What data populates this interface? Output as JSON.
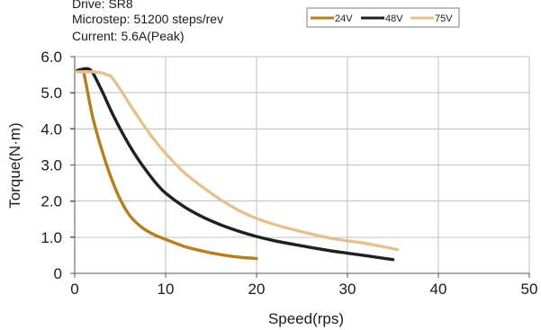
{
  "notes": {
    "drive": "Drive: SR8",
    "microstep": "Microstep: 51200 steps/rev",
    "current": "Current: 5.6A(Peak)"
  },
  "chart_data": {
    "type": "line",
    "title": "",
    "xlabel": "Speed(rps)",
    "ylabel": "Torque(N·m)",
    "xlim": [
      0,
      50
    ],
    "ylim": [
      0,
      6
    ],
    "xticks": [
      {
        "value": 0,
        "label": "0"
      },
      {
        "value": 10,
        "label": "10"
      },
      {
        "value": 20,
        "label": "20"
      },
      {
        "value": 30,
        "label": "30"
      },
      {
        "value": 40,
        "label": "40"
      },
      {
        "value": 50,
        "label": "50"
      }
    ],
    "yticks": [
      {
        "value": 0,
        "label": "0"
      },
      {
        "value": 1,
        "label": "1.0"
      },
      {
        "value": 2,
        "label": "2.0"
      },
      {
        "value": 3,
        "label": "3.0"
      },
      {
        "value": 4,
        "label": "4.0"
      },
      {
        "value": 5,
        "label": "5.0"
      },
      {
        "value": 6,
        "label": "6.0"
      }
    ],
    "grid": true,
    "legend_position": "top-right",
    "series": [
      {
        "name": "24V",
        "color": "#b57f1e",
        "x": [
          0.3,
          0.8,
          1.0,
          1.4,
          2.0,
          3.0,
          4.0,
          5.0,
          6.0,
          7.0,
          8.0,
          9.0,
          10.0,
          12.0,
          14.0,
          16.0,
          18.0,
          20.0
        ],
        "y": [
          5.6,
          5.62,
          5.55,
          5.05,
          4.3,
          3.4,
          2.65,
          2.05,
          1.62,
          1.35,
          1.17,
          1.04,
          0.94,
          0.75,
          0.62,
          0.52,
          0.45,
          0.41
        ]
      },
      {
        "name": "48V",
        "color": "#231f20",
        "x": [
          0.3,
          1.0,
          1.5,
          2.0,
          3.0,
          4.0,
          5.0,
          6.0,
          7.0,
          8.0,
          9.0,
          10.0,
          12.0,
          14.0,
          16.0,
          18.0,
          20.0,
          22.0,
          25.0,
          28.0,
          30.0,
          32.0,
          35.0
        ],
        "y": [
          5.62,
          5.66,
          5.66,
          5.55,
          5.05,
          4.5,
          4.0,
          3.55,
          3.15,
          2.8,
          2.48,
          2.22,
          1.85,
          1.57,
          1.35,
          1.17,
          1.02,
          0.9,
          0.76,
          0.63,
          0.56,
          0.49,
          0.38
        ]
      },
      {
        "name": "75V",
        "color": "#e3c28f",
        "x": [
          0.3,
          1.0,
          2.0,
          3.0,
          3.5,
          4.0,
          5.0,
          6.0,
          7.0,
          8.0,
          9.0,
          10.0,
          12.0,
          14.0,
          16.0,
          18.0,
          20.0,
          22.0,
          25.0,
          28.0,
          30.0,
          32.0,
          35.5
        ],
        "y": [
          5.58,
          5.58,
          5.58,
          5.55,
          5.5,
          5.45,
          5.1,
          4.7,
          4.32,
          3.95,
          3.62,
          3.32,
          2.8,
          2.4,
          2.05,
          1.75,
          1.52,
          1.35,
          1.15,
          0.98,
          0.9,
          0.83,
          0.66
        ]
      }
    ]
  }
}
